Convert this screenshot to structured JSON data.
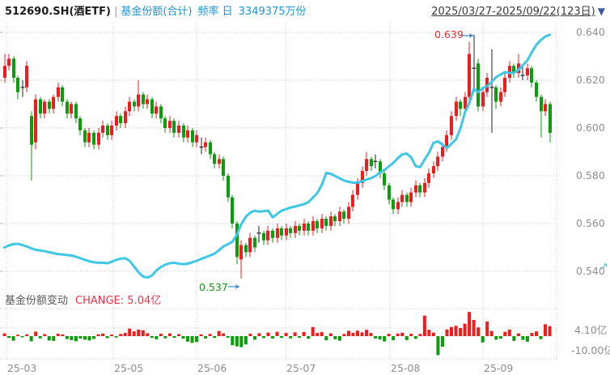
{
  "header": {
    "symbol": "512690.SH(酒ETF)",
    "separator": "|",
    "series_name": "基金份额(合计)",
    "frequency": "频率 日",
    "latest_value": "3349375万份",
    "date_range": "2025/03/27-2025/09/22(123日)",
    "dropdown_icon": "▼"
  },
  "sub_header": {
    "title": "基金份额变动",
    "change_text": "CHANGE: 5.04亿"
  },
  "annotations": {
    "high": "0.639",
    "low": "0.537"
  },
  "corner_icon": "↗",
  "axes": {
    "price_ticks": [
      "0.640",
      "0.620",
      "0.600",
      "0.580",
      "0.560",
      "0.540"
    ],
    "sub_ticks": [
      "4.10亿",
      "-10.00亿"
    ],
    "x_labels": [
      "25-03",
      "25-05",
      "25-06",
      "25-07",
      "25-08",
      "25-09"
    ]
  },
  "chart_data": {
    "type": "candlestick+line+bar",
    "title": "512690.SH(酒ETF) 基金份额(合计)",
    "frequency": "daily",
    "period": "2025/03/27-2025/09/22",
    "days": 123,
    "price_axis": {
      "ticks": [
        0.64,
        0.62,
        0.6,
        0.58,
        0.56,
        0.54
      ],
      "ylim": [
        0.5365,
        0.6415
      ]
    },
    "sub_axis": {
      "ticks_yi": [
        4.1,
        -10.0
      ],
      "unit": "亿"
    },
    "high_annotation": 0.639,
    "low_annotation": 0.537,
    "latest_share_total_wanfen": 3349375,
    "latest_change_yi": 5.04,
    "colors": {
      "up": "#ee1c1c",
      "down": "#0a9e0a",
      "doji": "#222222",
      "share_line": "#3fc8e6",
      "grid": "#cccccc",
      "axis_text": "#8e8e8e",
      "high_anno": "#e03030",
      "low_anno": "#0a9a0a",
      "arrow": "#3a87c8"
    },
    "candles_ohlc": [
      [
        0.621,
        0.631,
        0.619,
        0.626
      ],
      [
        0.626,
        0.631,
        0.624,
        0.629
      ],
      [
        0.629,
        0.63,
        0.619,
        0.621
      ],
      [
        0.621,
        0.622,
        0.612,
        0.615
      ],
      [
        0.6165,
        0.62,
        0.613,
        0.617
      ],
      [
        0.617,
        0.628,
        0.615,
        0.626
      ],
      [
        0.605,
        0.607,
        0.578,
        0.593
      ],
      [
        0.594,
        0.614,
        0.591,
        0.612
      ],
      [
        0.612,
        0.613,
        0.604,
        0.606
      ],
      [
        0.606,
        0.612,
        0.604,
        0.611
      ],
      [
        0.611,
        0.612,
        0.606,
        0.608
      ],
      [
        0.608,
        0.614,
        0.606,
        0.613
      ],
      [
        0.613,
        0.619,
        0.611,
        0.617
      ],
      [
        0.617,
        0.618,
        0.609,
        0.611
      ],
      [
        0.611,
        0.612,
        0.604,
        0.606
      ],
      [
        0.606,
        0.611,
        0.604,
        0.61
      ],
      [
        0.61,
        0.611,
        0.602,
        0.604
      ],
      [
        0.604,
        0.605,
        0.597,
        0.599
      ],
      [
        0.599,
        0.6,
        0.592,
        0.594
      ],
      [
        0.594,
        0.6,
        0.592,
        0.598
      ],
      [
        0.598,
        0.599,
        0.591,
        0.593
      ],
      [
        0.593,
        0.6,
        0.591,
        0.598
      ],
      [
        0.598,
        0.603,
        0.596,
        0.601
      ],
      [
        0.601,
        0.602,
        0.595,
        0.597
      ],
      [
        0.597,
        0.603,
        0.595,
        0.601
      ],
      [
        0.601,
        0.607,
        0.599,
        0.605
      ],
      [
        0.605,
        0.606,
        0.6,
        0.602
      ],
      [
        0.602,
        0.609,
        0.6,
        0.607
      ],
      [
        0.607,
        0.613,
        0.605,
        0.611
      ],
      [
        0.611,
        0.612,
        0.607,
        0.609
      ],
      [
        0.609,
        0.62,
        0.607,
        0.614
      ],
      [
        0.614,
        0.615,
        0.608,
        0.61
      ],
      [
        0.61,
        0.614,
        0.608,
        0.612
      ],
      [
        0.612,
        0.613,
        0.604,
        0.606
      ],
      [
        0.606,
        0.611,
        0.604,
        0.609
      ],
      [
        0.609,
        0.61,
        0.602,
        0.604
      ],
      [
        0.604,
        0.605,
        0.598,
        0.6
      ],
      [
        0.6,
        0.605,
        0.598,
        0.603
      ],
      [
        0.603,
        0.604,
        0.596,
        0.598
      ],
      [
        0.598,
        0.603,
        0.596,
        0.601
      ],
      [
        0.601,
        0.602,
        0.594,
        0.596
      ],
      [
        0.596,
        0.601,
        0.594,
        0.599
      ],
      [
        0.599,
        0.6,
        0.592,
        0.594
      ],
      [
        0.594,
        0.599,
        0.592,
        0.597
      ],
      [
        0.5925,
        0.596,
        0.589,
        0.592
      ],
      [
        0.592,
        0.596,
        0.59,
        0.594
      ],
      [
        0.594,
        0.595,
        0.587,
        0.589
      ],
      [
        0.589,
        0.59,
        0.583,
        0.585
      ],
      [
        0.585,
        0.589,
        0.583,
        0.587
      ],
      [
        0.587,
        0.588,
        0.578,
        0.58
      ],
      [
        0.58,
        0.581,
        0.569,
        0.571
      ],
      [
        0.571,
        0.572,
        0.558,
        0.56
      ],
      [
        0.56,
        0.561,
        0.543,
        0.546
      ],
      [
        0.545,
        0.553,
        0.537,
        0.551
      ],
      [
        0.551,
        0.552,
        0.546,
        0.548
      ],
      [
        0.548,
        0.556,
        0.546,
        0.554
      ],
      [
        0.554,
        0.555,
        0.548,
        0.55
      ],
      [
        0.5555,
        0.559,
        0.552,
        0.556
      ],
      [
        0.556,
        0.557,
        0.551,
        0.553
      ],
      [
        0.553,
        0.559,
        0.551,
        0.557
      ],
      [
        0.557,
        0.558,
        0.552,
        0.554
      ],
      [
        0.554,
        0.56,
        0.552,
        0.558
      ],
      [
        0.558,
        0.559,
        0.553,
        0.555
      ],
      [
        0.555,
        0.56,
        0.553,
        0.558
      ],
      [
        0.558,
        0.559,
        0.554,
        0.556
      ],
      [
        0.556,
        0.561,
        0.554,
        0.559
      ],
      [
        0.559,
        0.56,
        0.555,
        0.557
      ],
      [
        0.557,
        0.562,
        0.555,
        0.56
      ],
      [
        0.56,
        0.561,
        0.555,
        0.557
      ],
      [
        0.557,
        0.563,
        0.555,
        0.561
      ],
      [
        0.561,
        0.562,
        0.556,
        0.558
      ],
      [
        0.558,
        0.564,
        0.556,
        0.562
      ],
      [
        0.562,
        0.563,
        0.557,
        0.559
      ],
      [
        0.559,
        0.565,
        0.557,
        0.563
      ],
      [
        0.563,
        0.564,
        0.559,
        0.561
      ],
      [
        0.561,
        0.567,
        0.559,
        0.565
      ],
      [
        0.565,
        0.566,
        0.56,
        0.562
      ],
      [
        0.562,
        0.569,
        0.56,
        0.567
      ],
      [
        0.567,
        0.574,
        0.565,
        0.572
      ],
      [
        0.572,
        0.579,
        0.57,
        0.577
      ],
      [
        0.577,
        0.584,
        0.575,
        0.582
      ],
      [
        0.582,
        0.59,
        0.58,
        0.587
      ],
      [
        0.587,
        0.588,
        0.582,
        0.584
      ],
      [
        0.5865,
        0.589,
        0.583,
        0.586
      ],
      [
        0.586,
        0.587,
        0.579,
        0.581
      ],
      [
        0.581,
        0.582,
        0.574,
        0.576
      ],
      [
        0.576,
        0.577,
        0.568,
        0.57
      ],
      [
        0.57,
        0.571,
        0.564,
        0.566
      ],
      [
        0.566,
        0.571,
        0.564,
        0.569
      ],
      [
        0.569,
        0.574,
        0.567,
        0.572
      ],
      [
        0.572,
        0.573,
        0.567,
        0.569
      ],
      [
        0.569,
        0.575,
        0.567,
        0.573
      ],
      [
        0.573,
        0.578,
        0.571,
        0.576
      ],
      [
        0.576,
        0.577,
        0.571,
        0.573
      ],
      [
        0.573,
        0.579,
        0.571,
        0.577
      ],
      [
        0.577,
        0.583,
        0.575,
        0.581
      ],
      [
        0.581,
        0.586,
        0.579,
        0.584
      ],
      [
        0.584,
        0.59,
        0.582,
        0.588
      ],
      [
        0.588,
        0.594,
        0.586,
        0.592
      ],
      [
        0.592,
        0.599,
        0.59,
        0.597
      ],
      [
        0.597,
        0.607,
        0.595,
        0.605
      ],
      [
        0.605,
        0.613,
        0.603,
        0.611
      ],
      [
        0.611,
        0.612,
        0.605,
        0.608
      ],
      [
        0.608,
        0.615,
        0.606,
        0.613
      ],
      [
        0.613,
        0.636,
        0.611,
        0.631
      ],
      [
        0.6255,
        0.639,
        0.615,
        0.625
      ],
      [
        0.627,
        0.629,
        0.607,
        0.609
      ],
      [
        0.609,
        0.617,
        0.607,
        0.615
      ],
      [
        0.615,
        0.623,
        0.613,
        0.621
      ],
      [
        0.6175,
        0.633,
        0.598,
        0.617
      ],
      [
        0.617,
        0.618,
        0.608,
        0.611
      ],
      [
        0.611,
        0.617,
        0.609,
        0.615
      ],
      [
        0.615,
        0.623,
        0.613,
        0.621
      ],
      [
        0.621,
        0.628,
        0.619,
        0.626
      ],
      [
        0.626,
        0.627,
        0.621,
        0.623
      ],
      [
        0.623,
        0.631,
        0.621,
        0.627
      ],
      [
        0.6225,
        0.626,
        0.62,
        0.622
      ],
      [
        0.622,
        0.627,
        0.62,
        0.625
      ],
      [
        0.625,
        0.626,
        0.617,
        0.619
      ],
      [
        0.619,
        0.62,
        0.611,
        0.613
      ],
      [
        0.613,
        0.614,
        0.596,
        0.607
      ],
      [
        0.607,
        0.612,
        0.605,
        0.61
      ],
      [
        0.61,
        0.611,
        0.594,
        0.598
      ]
    ],
    "share_line_scaled": [
      0.55,
      0.5508,
      0.5514,
      0.5515,
      0.551,
      0.5504,
      0.5496,
      0.549,
      0.5487,
      0.5484,
      0.548,
      0.5476,
      0.5472,
      0.547,
      0.5468,
      0.5466,
      0.5461,
      0.5455,
      0.5448,
      0.5442,
      0.5438,
      0.5436,
      0.5436,
      0.5434,
      0.544,
      0.5448,
      0.5453,
      0.5455,
      0.5444,
      0.542,
      0.5396,
      0.5378,
      0.5374,
      0.5382,
      0.5404,
      0.5418,
      0.5428,
      0.5434,
      0.5436,
      0.5432,
      0.543,
      0.5432,
      0.5438,
      0.5444,
      0.5452,
      0.5459,
      0.5466,
      0.5474,
      0.5488,
      0.5504,
      0.5514,
      0.5524,
      0.5554,
      0.5598,
      0.5628,
      0.5646,
      0.5654,
      0.565,
      0.5652,
      0.5654,
      0.5626,
      0.564,
      0.5654,
      0.566,
      0.5667,
      0.5671,
      0.5676,
      0.5681,
      0.569,
      0.5708,
      0.5728,
      0.5762,
      0.5812,
      0.5808,
      0.5799,
      0.5789,
      0.578,
      0.5775,
      0.5771,
      0.5772,
      0.5777,
      0.5784,
      0.579,
      0.5799,
      0.5814,
      0.5824,
      0.5839,
      0.5854,
      0.5874,
      0.5889,
      0.5893,
      0.5876,
      0.584,
      0.5836,
      0.5868,
      0.5898,
      0.5938,
      0.5944,
      0.593,
      0.5916,
      0.5934,
      0.5952,
      0.5998,
      0.6064,
      0.6104,
      0.6163,
      0.615,
      0.6167,
      0.6175,
      0.6193,
      0.6213,
      0.6224,
      0.6234,
      0.623,
      0.6231,
      0.6243,
      0.6263,
      0.6283,
      0.6318,
      0.6348,
      0.6368,
      0.6383,
      0.639
    ],
    "share_change_bars_yi": [
      1.4,
      -0.9,
      -2.3,
      0.7,
      -0.6,
      0.9,
      -2.6,
      2.3,
      -1.1,
      1.0,
      -2.2,
      -2.4,
      1.2,
      0.8,
      -1.5,
      -2.0,
      -2.6,
      -1.2,
      -1.8,
      -2.2,
      -1.4,
      0.9,
      1.3,
      -1.0,
      0.8,
      -0.7,
      1.1,
      1.6,
      3.8,
      2.4,
      3.3,
      3.0,
      1.5,
      -0.9,
      -1.6,
      1.2,
      -1.1,
      1.4,
      -0.8,
      1.0,
      -1.3,
      -2.8,
      -3.4,
      -3.0,
      0.9,
      -1.2,
      1.1,
      -0.9,
      2.6,
      1.4,
      -0.8,
      -4.6,
      -5.2,
      -5.6,
      -4.2,
      1.2,
      -1.8,
      1.5,
      -1.0,
      1.8,
      -1.2,
      2.2,
      -0.9,
      1.6,
      -1.1,
      1.9,
      -0.8,
      2.1,
      -1.3,
      4.6,
      1.6,
      2.1,
      -2.1,
      1.4,
      -1.6,
      -2.3,
      1.1,
      2.7,
      1.7,
      2.8,
      1.9,
      3.2,
      1.6,
      -1.2,
      -1.7,
      -2.7,
      1.2,
      -2.1,
      1.3,
      1.7,
      -2.0,
      1.2,
      -1.4,
      1.1,
      10.4,
      3.2,
      1.8,
      -9.6,
      -5.4,
      3.4,
      4.6,
      5.2,
      4.1,
      6.3,
      12.2,
      8.2,
      4.4,
      -3.2,
      7.4,
      2.6,
      -1.8,
      -1.3,
      2.2,
      3.3,
      -2.4,
      1.4,
      -1.9,
      -2.8,
      1.6,
      2.4,
      -1.5,
      6.0,
      5.04
    ]
  }
}
